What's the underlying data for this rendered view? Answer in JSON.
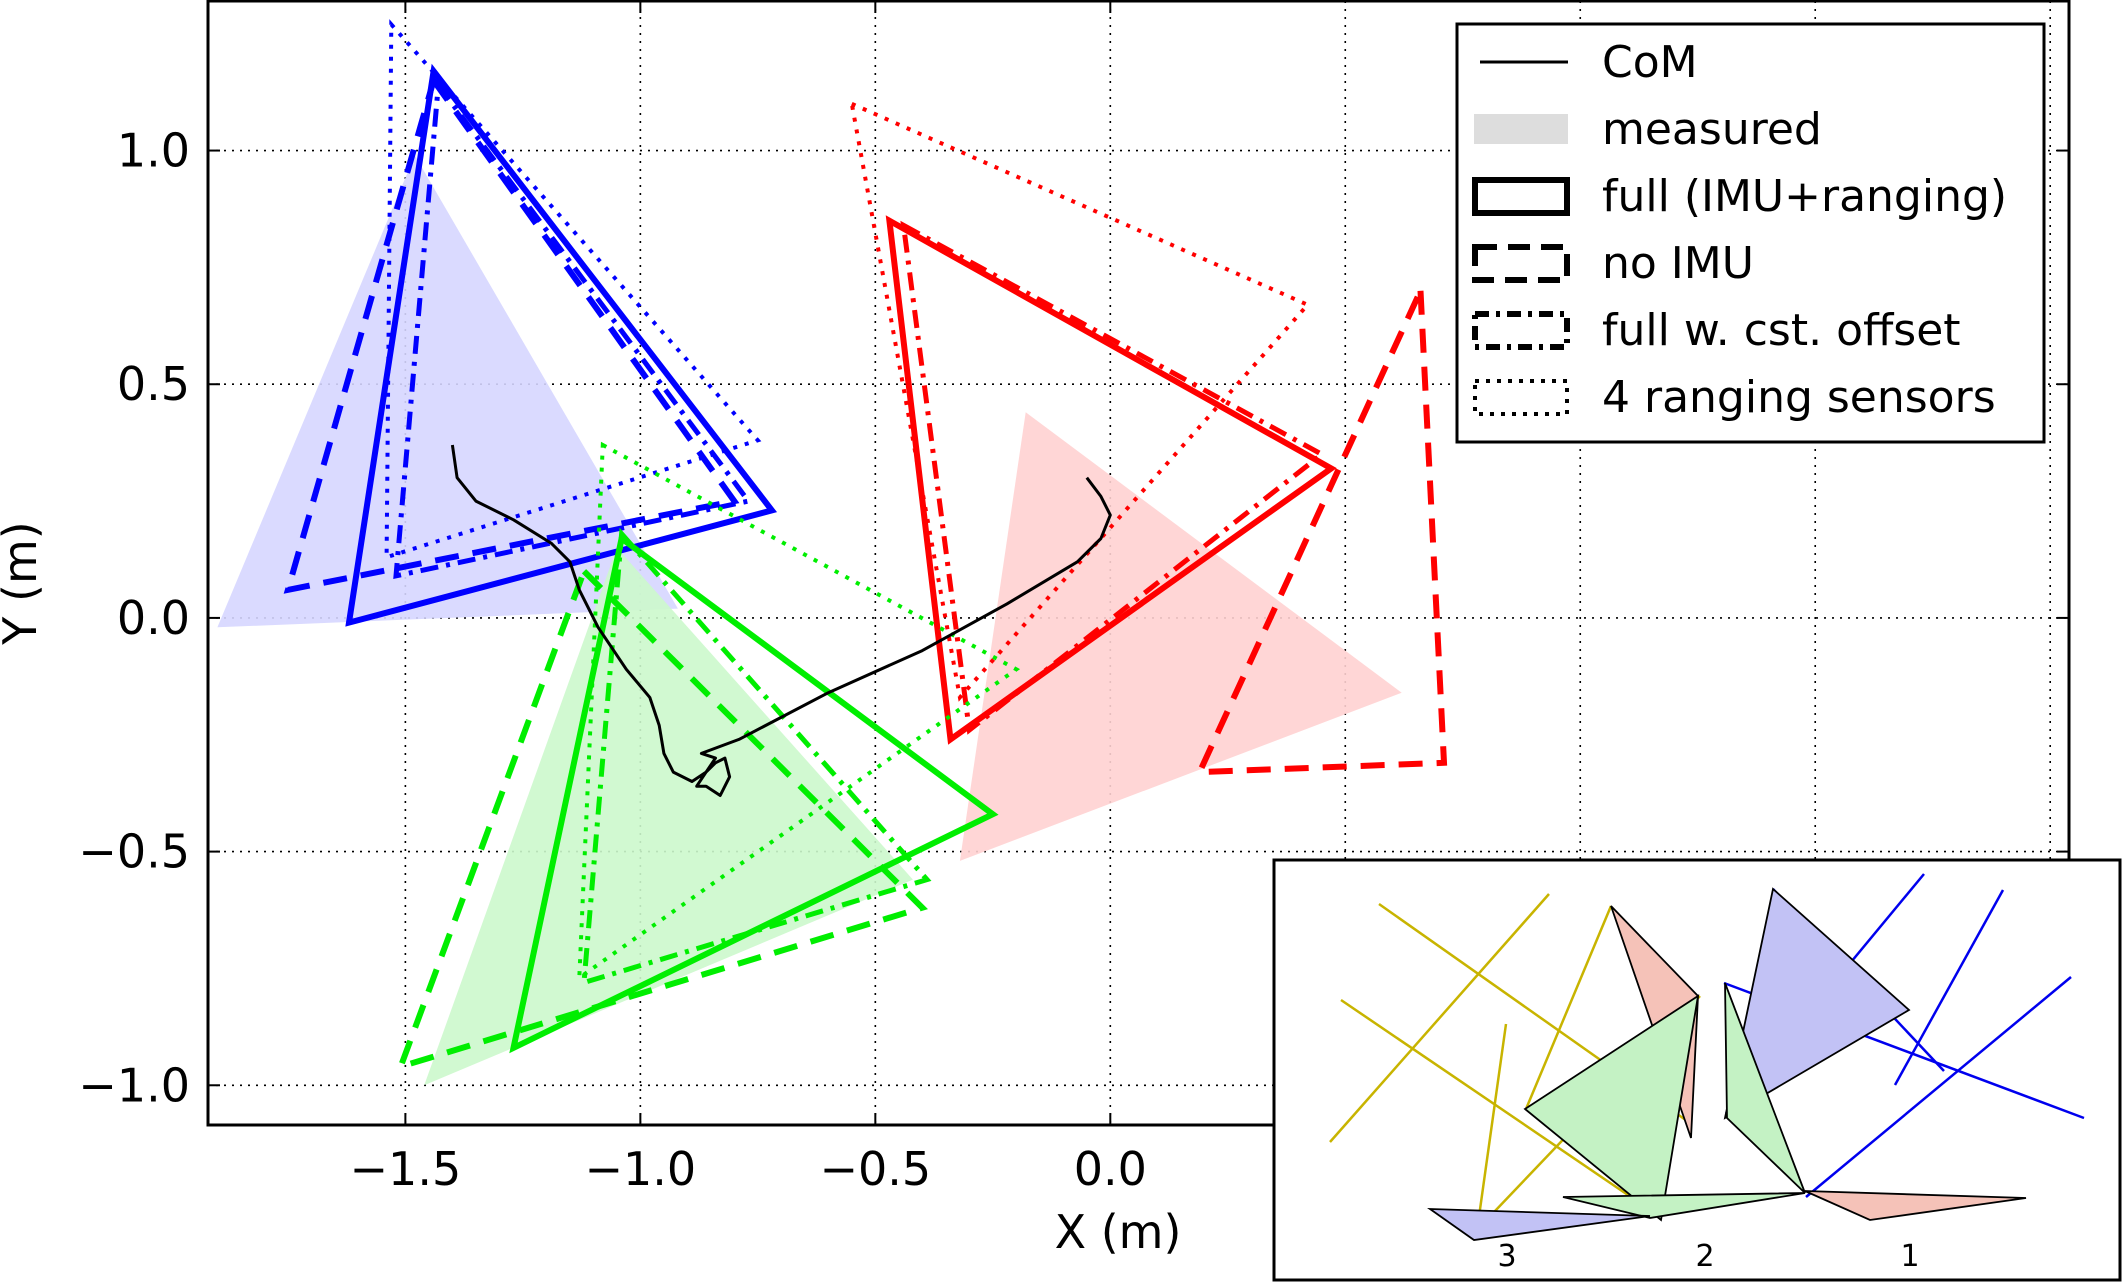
{
  "chart_data": {
    "type": "line",
    "title": "",
    "xlabel": "X (m)",
    "ylabel": "Y (m)",
    "xlim": [
      -1.92,
      2.04
    ],
    "ylim": [
      -1.085,
      1.32
    ],
    "grid": true,
    "xticks": [
      -1.5,
      -1.0,
      -0.5,
      0.0
    ],
    "xtick_labels": [
      "−1.5",
      "−1.0",
      "−0.5",
      "0.0"
    ],
    "yticks": [
      1.0,
      0.5,
      0.0,
      -0.5,
      -1.0
    ],
    "ytick_labels": [
      "1.0",
      "0.5",
      "0.0",
      "−0.5",
      "−1.0"
    ],
    "legend": {
      "placement": "top-right",
      "entries": [
        {
          "label": "CoM",
          "style": "thin-solid"
        },
        {
          "label": "measured",
          "style": "fill"
        },
        {
          "label": "full (IMU+ranging)",
          "style": "solid"
        },
        {
          "label": "no IMU",
          "style": "dashed"
        },
        {
          "label": "full w. cst. offset",
          "style": "dashdot"
        },
        {
          "label": "4 ranging sensors",
          "style": "dotted"
        }
      ]
    },
    "colors": {
      "blue": "#0000ff",
      "red": "#ff0000",
      "green": "#00ee00",
      "blue_fill": "#d6d6ff",
      "red_fill": "#ffd2d2",
      "green_fill": "#ccf8cc",
      "com": "#000000"
    },
    "triangles": [
      {
        "color": "blue",
        "measured": [
          [
            -1.48,
            0.99
          ],
          [
            -0.92,
            0.02
          ],
          [
            -1.9,
            -0.02
          ]
        ],
        "full": [
          [
            -1.44,
            1.17
          ],
          [
            -0.72,
            0.23
          ],
          [
            -1.62,
            -0.01
          ]
        ],
        "no_imu": [
          [
            -1.44,
            1.15
          ],
          [
            -0.8,
            0.25
          ],
          [
            -1.75,
            0.06
          ]
        ],
        "cst_offset": [
          [
            -1.43,
            1.14
          ],
          [
            -0.77,
            0.25
          ],
          [
            -1.52,
            0.09
          ]
        ],
        "ranging4": [
          [
            -1.53,
            1.27
          ],
          [
            -0.75,
            0.38
          ],
          [
            -1.54,
            0.13
          ]
        ]
      },
      {
        "color": "red",
        "measured": [
          [
            -0.18,
            0.44
          ],
          [
            0.62,
            -0.16
          ],
          [
            -0.32,
            -0.52
          ]
        ],
        "full": [
          [
            -0.47,
            0.85
          ],
          [
            0.47,
            0.32
          ],
          [
            -0.34,
            -0.26
          ]
        ],
        "no_imu": [
          [
            0.66,
            0.7
          ],
          [
            0.71,
            -0.31
          ],
          [
            0.19,
            -0.33
          ]
        ],
        "cst_offset": [
          [
            -0.44,
            0.84
          ],
          [
            0.45,
            0.35
          ],
          [
            -0.3,
            -0.24
          ]
        ],
        "ranging4": [
          [
            -0.55,
            1.1
          ],
          [
            0.42,
            0.67
          ],
          [
            -0.32,
            -0.17
          ]
        ]
      },
      {
        "color": "green",
        "measured": [
          [
            -1.05,
            0.15
          ],
          [
            -0.42,
            -0.56
          ],
          [
            -1.46,
            -1.0
          ]
        ],
        "full": [
          [
            -1.04,
            0.17
          ],
          [
            -0.25,
            -0.42
          ],
          [
            -1.27,
            -0.92
          ]
        ],
        "no_imu": [
          [
            -1.12,
            0.1
          ],
          [
            -0.4,
            -0.62
          ],
          [
            -1.51,
            -0.96
          ]
        ],
        "cst_offset": [
          [
            -1.04,
            0.18
          ],
          [
            -0.39,
            -0.56
          ],
          [
            -1.12,
            -0.78
          ]
        ],
        "ranging4": [
          [
            -1.08,
            0.37
          ],
          [
            -0.2,
            -0.11
          ],
          [
            -1.13,
            -0.77
          ]
        ]
      }
    ],
    "com_path": [
      [
        -1.4,
        0.37
      ],
      [
        -1.39,
        0.3
      ],
      [
        -1.35,
        0.25
      ],
      [
        -1.27,
        0.21
      ],
      [
        -1.19,
        0.16
      ],
      [
        -1.15,
        0.12
      ],
      [
        -1.13,
        0.06
      ],
      [
        -1.09,
        -0.02
      ],
      [
        -1.03,
        -0.11
      ],
      [
        -0.98,
        -0.17
      ],
      [
        -0.96,
        -0.23
      ],
      [
        -0.95,
        -0.29
      ],
      [
        -0.93,
        -0.33
      ],
      [
        -0.89,
        -0.35
      ],
      [
        -0.86,
        -0.33
      ],
      [
        -0.84,
        -0.31
      ],
      [
        -0.82,
        -0.3
      ],
      [
        -0.81,
        -0.34
      ],
      [
        -0.83,
        -0.38
      ],
      [
        -0.86,
        -0.36
      ],
      [
        -0.88,
        -0.36
      ],
      [
        -0.86,
        -0.33
      ],
      [
        -0.84,
        -0.3
      ],
      [
        -0.87,
        -0.29
      ],
      [
        -0.79,
        -0.26
      ],
      [
        -0.6,
        -0.16
      ],
      [
        -0.4,
        -0.07
      ],
      [
        -0.22,
        0.03
      ],
      [
        -0.07,
        0.12
      ],
      [
        -0.02,
        0.17
      ],
      [
        0.0,
        0.22
      ],
      [
        -0.02,
        0.26
      ],
      [
        -0.05,
        0.3
      ]
    ],
    "inset": {
      "labels": [
        "3",
        "2",
        "1"
      ]
    }
  }
}
